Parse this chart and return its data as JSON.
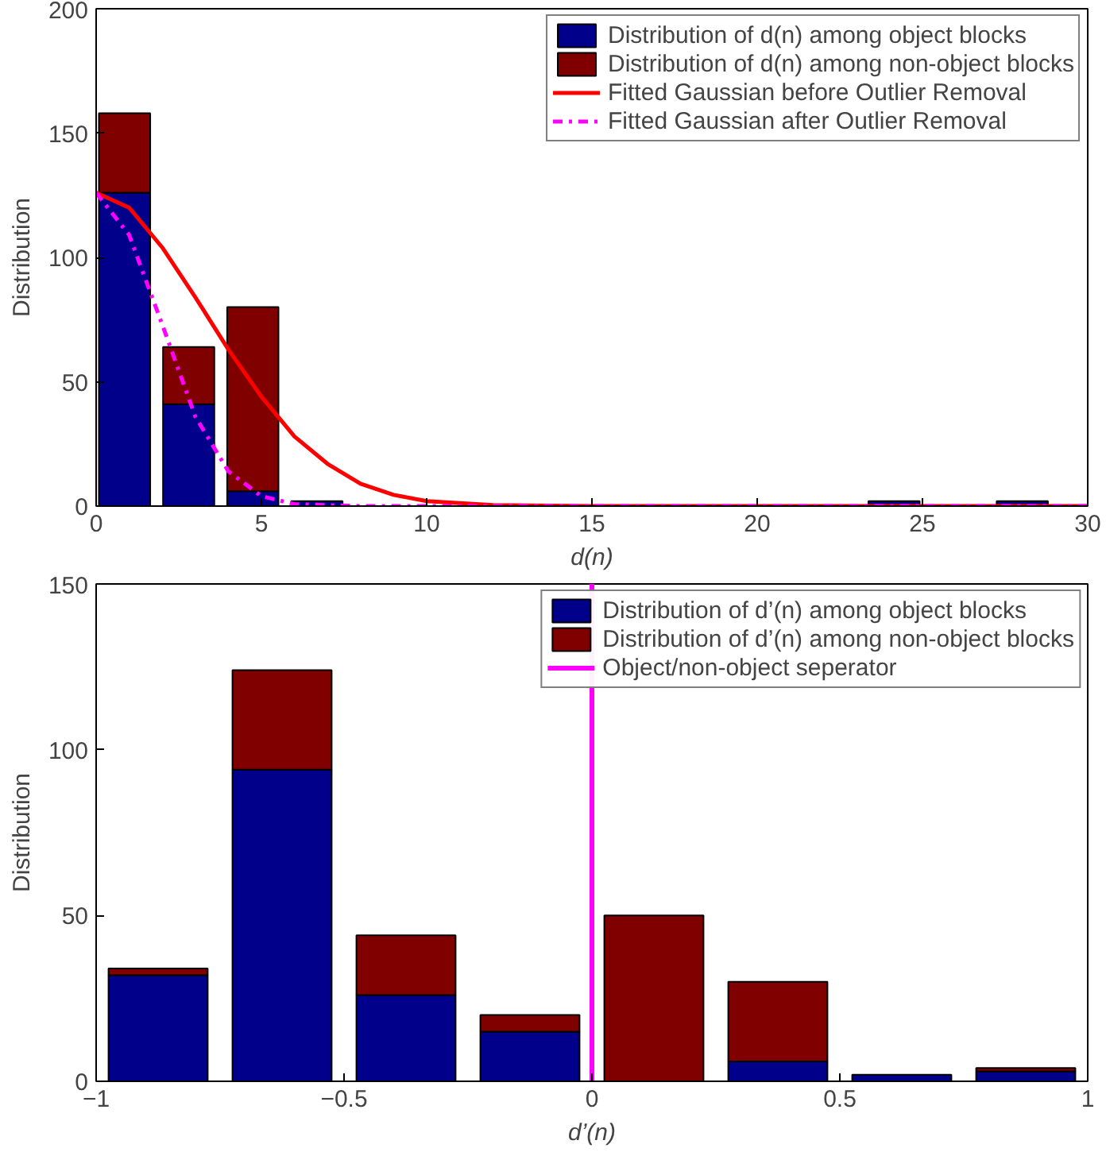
{
  "chart_data": [
    {
      "type": "bar",
      "stacked": true,
      "xlabel": "d(n)",
      "ylabel": "Distribution",
      "x": [
        0.86,
        2.8,
        4.74,
        6.68,
        24.14,
        28.02
      ],
      "series": [
        {
          "name": "Distribution of d(n) among object blocks",
          "color": "#00008b",
          "values": [
            126,
            41,
            6,
            2,
            2,
            2
          ]
        },
        {
          "name": "Distribution of d(n) among non-object blocks",
          "color": "#800000",
          "values": [
            32,
            23,
            74,
            0,
            0,
            0
          ]
        },
        {
          "type": "line",
          "name": "Fitted Gaussian before Outlier Removal",
          "color": "#ff0000",
          "line_style": "solid",
          "x": [
            0,
            1,
            2,
            3,
            4,
            5,
            6,
            7,
            8,
            9,
            10,
            12,
            15,
            30
          ],
          "values": [
            126,
            120,
            104,
            84,
            63,
            44,
            28,
            17,
            9,
            4.5,
            2,
            0.4,
            0,
            0
          ]
        },
        {
          "type": "line",
          "name": "Fitted Gaussian after Outlier Removal",
          "color": "#ff00ff",
          "line_style": "dashed",
          "x": [
            0,
            1,
            2,
            3,
            4,
            5,
            6,
            8,
            30
          ],
          "values": [
            126,
            109,
            73,
            36,
            14,
            4,
            0.8,
            0,
            0
          ]
        }
      ],
      "xlim": [
        0,
        30
      ],
      "ylim": [
        0,
        200
      ],
      "xticks": [
        0,
        5,
        10,
        15,
        20,
        25,
        30
      ],
      "yticks": [
        0,
        50,
        100,
        150,
        200
      ],
      "grid": false,
      "legend": "top right"
    },
    {
      "type": "bar",
      "stacked": true,
      "xlabel": "d’(n)",
      "ylabel": "Distribution",
      "x": [
        -0.875,
        -0.625,
        -0.375,
        -0.125,
        0.125,
        0.375,
        0.625,
        0.875
      ],
      "series": [
        {
          "name": "Distribution of d’(n) among object blocks",
          "color": "#00008b",
          "values": [
            32,
            94,
            26,
            15,
            0,
            6,
            2,
            3
          ]
        },
        {
          "name": "Distribution of d’(n) among non-object blocks",
          "color": "#800000",
          "values": [
            2,
            30,
            18,
            5,
            50,
            24,
            0,
            1
          ]
        }
      ],
      "ref_lines": [
        {
          "axis": "x",
          "value": 0,
          "label": "Object/non-object seperator",
          "color": "#ff00ff"
        }
      ],
      "xlim": [
        -1,
        1
      ],
      "ylim": [
        0,
        150
      ],
      "xticks": [
        -1,
        -0.5,
        0,
        0.5,
        1
      ],
      "yticks": [
        0,
        50,
        100,
        150
      ],
      "grid": false,
      "legend": "top right"
    }
  ]
}
